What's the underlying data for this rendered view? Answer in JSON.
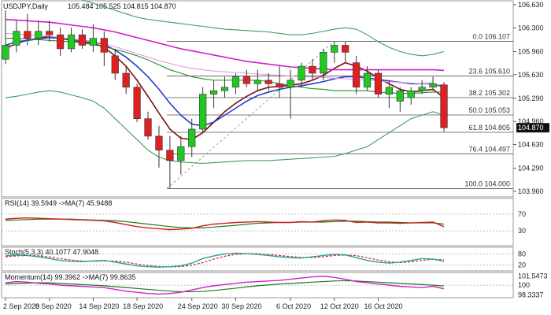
{
  "chart_data": {
    "type": "candlestick",
    "symbol_label": "USDJPY,Daily",
    "ohlc_header": "105.484 105.525 104.815 104.870",
    "last_price_label": "104.870",
    "ylim": [
      103.96,
      106.63
    ],
    "y_ticks": [
      "106.630",
      "106.300",
      "105.960",
      "105.630",
      "105.290",
      "104.960",
      "104.630",
      "104.290",
      "103.960"
    ],
    "x_labels": [
      "2 Sep 2020",
      "8 Sep 2020",
      "14 Sep 2020",
      "18 Sep 2020",
      "24 Sep 2020",
      "30 Sep 2020",
      "6 Oct 2020",
      "12 Oct 2020",
      "16 Oct 2020"
    ],
    "candles": [
      {
        "o": 105.85,
        "h": 106.55,
        "l": 105.78,
        "c": 106.05
      },
      {
        "o": 106.05,
        "h": 106.4,
        "l": 105.95,
        "c": 106.25
      },
      {
        "o": 106.25,
        "h": 106.5,
        "l": 106.05,
        "c": 106.15
      },
      {
        "o": 106.15,
        "h": 106.4,
        "l": 106.05,
        "c": 106.25
      },
      {
        "o": 106.25,
        "h": 106.4,
        "l": 106.1,
        "c": 106.2
      },
      {
        "o": 106.2,
        "h": 106.3,
        "l": 105.9,
        "c": 106.0
      },
      {
        "o": 106.0,
        "h": 106.3,
        "l": 105.95,
        "c": 106.2
      },
      {
        "o": 106.2,
        "h": 106.28,
        "l": 106.0,
        "c": 106.05
      },
      {
        "o": 106.05,
        "h": 106.35,
        "l": 105.95,
        "c": 106.15
      },
      {
        "o": 106.15,
        "h": 106.25,
        "l": 105.75,
        "c": 105.95
      },
      {
        "o": 105.9,
        "h": 106.0,
        "l": 105.55,
        "c": 105.65
      },
      {
        "o": 105.65,
        "h": 105.75,
        "l": 105.35,
        "c": 105.45
      },
      {
        "o": 105.45,
        "h": 105.5,
        "l": 104.95,
        "c": 105.0
      },
      {
        "o": 105.0,
        "h": 105.1,
        "l": 104.7,
        "c": 104.75
      },
      {
        "o": 104.75,
        "h": 104.9,
        "l": 104.3,
        "c": 104.55
      },
      {
        "o": 104.55,
        "h": 104.75,
        "l": 104.0,
        "c": 104.4
      },
      {
        "o": 104.4,
        "h": 104.75,
        "l": 104.2,
        "c": 104.6
      },
      {
        "o": 104.6,
        "h": 105.0,
        "l": 104.45,
        "c": 104.85
      },
      {
        "o": 104.85,
        "h": 105.45,
        "l": 104.8,
        "c": 105.35
      },
      {
        "o": 105.35,
        "h": 105.55,
        "l": 105.15,
        "c": 105.4
      },
      {
        "o": 105.4,
        "h": 105.6,
        "l": 105.3,
        "c": 105.45
      },
      {
        "o": 105.45,
        "h": 105.65,
        "l": 105.35,
        "c": 105.6
      },
      {
        "o": 105.6,
        "h": 105.7,
        "l": 105.45,
        "c": 105.5
      },
      {
        "o": 105.5,
        "h": 105.7,
        "l": 105.4,
        "c": 105.55
      },
      {
        "o": 105.55,
        "h": 105.65,
        "l": 105.4,
        "c": 105.5
      },
      {
        "o": 105.5,
        "h": 105.75,
        "l": 105.3,
        "c": 105.45
      },
      {
        "o": 105.45,
        "h": 105.7,
        "l": 105.0,
        "c": 105.55
      },
      {
        "o": 105.55,
        "h": 105.8,
        "l": 105.45,
        "c": 105.75
      },
      {
        "o": 105.75,
        "h": 105.85,
        "l": 105.55,
        "c": 105.65
      },
      {
        "o": 105.65,
        "h": 106.0,
        "l": 105.55,
        "c": 105.95
      },
      {
        "o": 105.95,
        "h": 106.1,
        "l": 105.8,
        "c": 106.05
      },
      {
        "o": 106.05,
        "h": 106.1,
        "l": 105.8,
        "c": 105.95
      },
      {
        "o": 105.8,
        "h": 105.9,
        "l": 105.35,
        "c": 105.45
      },
      {
        "o": 105.45,
        "h": 105.75,
        "l": 105.4,
        "c": 105.65
      },
      {
        "o": 105.65,
        "h": 105.7,
        "l": 105.3,
        "c": 105.35
      },
      {
        "o": 105.35,
        "h": 105.55,
        "l": 105.15,
        "c": 105.45
      },
      {
        "o": 105.25,
        "h": 105.45,
        "l": 105.1,
        "c": 105.4
      },
      {
        "o": 105.3,
        "h": 105.45,
        "l": 105.2,
        "c": 105.4
      },
      {
        "o": 105.4,
        "h": 105.55,
        "l": 105.35,
        "c": 105.45
      },
      {
        "o": 105.45,
        "h": 105.6,
        "l": 105.4,
        "c": 105.5
      },
      {
        "o": 105.484,
        "h": 105.525,
        "l": 104.815,
        "c": 104.87
      }
    ],
    "moving_averages": [
      {
        "name": "dark-red",
        "color": "#7a1010",
        "values": [
          106.0,
          106.08,
          106.12,
          106.15,
          106.18,
          106.15,
          106.12,
          106.1,
          106.08,
          106.02,
          105.9,
          105.75,
          105.55,
          105.32,
          105.08,
          104.85,
          104.72,
          104.7,
          104.8,
          104.95,
          105.1,
          105.22,
          105.32,
          105.4,
          105.45,
          105.46,
          105.48,
          105.5,
          105.55,
          105.62,
          105.72,
          105.8,
          105.75,
          105.68,
          105.58,
          105.5,
          105.42,
          105.38,
          105.4,
          105.42,
          105.3
        ]
      },
      {
        "name": "blue",
        "color": "#1f3fcc",
        "values": [
          106.05,
          106.1,
          106.12,
          106.14,
          106.16,
          106.15,
          106.14,
          106.12,
          106.1,
          106.06,
          105.98,
          105.88,
          105.75,
          105.6,
          105.42,
          105.22,
          105.05,
          104.92,
          104.9,
          104.95,
          105.05,
          105.15,
          105.25,
          105.33,
          105.38,
          105.42,
          105.45,
          105.47,
          105.5,
          105.53,
          105.57,
          105.6,
          105.6,
          105.58,
          105.56,
          105.54,
          105.52,
          105.5,
          105.5,
          105.5,
          105.45
        ]
      },
      {
        "name": "green",
        "color": "#2a8a2a",
        "values": [
          106.15,
          106.15,
          106.14,
          106.13,
          106.12,
          106.11,
          106.1,
          106.08,
          106.06,
          106.03,
          105.99,
          105.95,
          105.9,
          105.84,
          105.77,
          105.7,
          105.65,
          105.6,
          105.57,
          105.55,
          105.55,
          105.55,
          105.55,
          105.55,
          105.53,
          105.5,
          105.47,
          105.45,
          105.43,
          105.42,
          105.4,
          105.4,
          105.4,
          105.4,
          105.38,
          105.37,
          105.36,
          105.36,
          105.37,
          105.38,
          105.38
        ]
      },
      {
        "name": "magenta",
        "color": "#d020c8",
        "values": [
          106.42,
          106.41,
          106.4,
          106.39,
          106.38,
          106.36,
          106.34,
          106.32,
          106.3,
          106.27,
          106.24,
          106.2,
          106.16,
          106.12,
          106.08,
          106.04,
          106.0,
          105.97,
          105.94,
          105.91,
          105.88,
          105.85,
          105.82,
          105.8,
          105.78,
          105.76,
          105.74,
          105.73,
          105.72,
          105.71,
          105.7,
          105.7,
          105.7,
          105.7,
          105.7,
          105.7,
          105.7,
          105.7,
          105.7,
          105.7,
          105.69
        ]
      },
      {
        "name": "pink",
        "color": "#e89ae0",
        "values": [
          106.22,
          106.21,
          106.2,
          106.19,
          106.18,
          106.16,
          106.14,
          106.12,
          106.1,
          106.07,
          106.03,
          105.98,
          105.93,
          105.88,
          105.83,
          105.79,
          105.75,
          105.72,
          105.7,
          105.68,
          105.67,
          105.66,
          105.65,
          105.64,
          105.63,
          105.62,
          105.61,
          105.6,
          105.6,
          105.59,
          105.58,
          105.57,
          105.56,
          105.55,
          105.54,
          105.53,
          105.52,
          105.51,
          105.5,
          105.49,
          105.48
        ]
      },
      {
        "name": "bollinger-upper",
        "color": "#3aa05a",
        "values": [
          106.7,
          106.72,
          106.75,
          106.78,
          106.8,
          106.78,
          106.75,
          106.7,
          106.65,
          106.6,
          106.55,
          106.5,
          106.45,
          106.42,
          106.4,
          106.38,
          106.36,
          106.34,
          106.32,
          106.3,
          106.28,
          106.27,
          106.26,
          106.25,
          106.24,
          106.22,
          106.2,
          106.2,
          106.22,
          106.25,
          106.28,
          106.3,
          106.28,
          106.2,
          106.1,
          106.02,
          105.96,
          105.92,
          105.9,
          105.92,
          105.96
        ]
      },
      {
        "name": "bollinger-lower",
        "color": "#3aa05a",
        "values": [
          105.3,
          105.32,
          105.35,
          105.38,
          105.4,
          105.38,
          105.34,
          105.3,
          105.25,
          105.15,
          105.0,
          104.85,
          104.7,
          104.55,
          104.45,
          104.4,
          104.38,
          104.37,
          104.36,
          104.37,
          104.38,
          104.39,
          104.4,
          104.4,
          104.4,
          104.41,
          104.42,
          104.43,
          104.44,
          104.45,
          104.46,
          104.5,
          104.55,
          104.6,
          104.7,
          104.8,
          104.9,
          105.0,
          105.05,
          105.1,
          105.05
        ]
      }
    ],
    "fibonacci": [
      {
        "label": "0.0 106.107",
        "value": 106.107
      },
      {
        "label": "23.6 105.610",
        "value": 105.61
      },
      {
        "label": "38.2 105.302",
        "value": 105.302
      },
      {
        "label": "50.0 105.053",
        "value": 105.053
      },
      {
        "label": "61.8 104.805",
        "value": 104.805
      },
      {
        "label": "76.4 104.497",
        "value": 104.497
      },
      {
        "label": "100.0 104.000",
        "value": 104.0
      }
    ],
    "panels": [
      {
        "name": "rsi",
        "header": "RSI(14) 39.5949  ->MA(7) 45.9488",
        "levels": [
          "70",
          "30"
        ],
        "ylim": [
          0,
          100
        ],
        "line_color": "#d02020",
        "ma_color": "#1a7a1a",
        "values": [
          58,
          60,
          61,
          60,
          59,
          58,
          57,
          56,
          55,
          54,
          50,
          45,
          40,
          37,
          35,
          33,
          34,
          36,
          42,
          46,
          48,
          50,
          51,
          52,
          51,
          50,
          50,
          52,
          51,
          54,
          56,
          55,
          50,
          51,
          49,
          49,
          48,
          49,
          50,
          51,
          40
        ],
        "ma_values": [
          55,
          56,
          57,
          58,
          58,
          58,
          58,
          57,
          56,
          55,
          54,
          52,
          49,
          46,
          43,
          40,
          38,
          37,
          37,
          39,
          41,
          43,
          46,
          48,
          49,
          50,
          50,
          51,
          51,
          51,
          52,
          53,
          53,
          52,
          51,
          51,
          50,
          49,
          49,
          49,
          46
        ]
      },
      {
        "name": "stochastic",
        "header": "Stoch(5,3,3) 40.1077  47.9048",
        "levels": [
          "80",
          "20"
        ],
        "ylim": [
          0,
          100
        ],
        "line_color": "#2aa0a0",
        "ma_color": "#d02020",
        "values": [
          70,
          75,
          72,
          65,
          55,
          45,
          40,
          38,
          42,
          45,
          35,
          25,
          15,
          10,
          8,
          10,
          15,
          30,
          55,
          70,
          80,
          85,
          82,
          78,
          72,
          65,
          60,
          58,
          65,
          72,
          78,
          75,
          60,
          45,
          35,
          30,
          35,
          45,
          55,
          52,
          40
        ],
        "ma_values": [
          65,
          70,
          72,
          70,
          64,
          55,
          47,
          41,
          40,
          42,
          41,
          35,
          25,
          17,
          11,
          9,
          11,
          18,
          33,
          52,
          68,
          78,
          82,
          82,
          77,
          72,
          66,
          61,
          61,
          65,
          72,
          75,
          71,
          60,
          47,
          37,
          33,
          37,
          45,
          51,
          48
        ]
      },
      {
        "name": "momentum",
        "header": "Momentum(14) 99.3962  ->MA(7) 99.8635",
        "levels": [
          "100"
        ],
        "tick_labels": [
          "101.5473",
          "98.3337"
        ],
        "ylim": [
          98.3,
          101.6
        ],
        "line_color": "#d020c8",
        "ma_color": "#1a7a1a",
        "values": [
          100.4,
          100.6,
          100.5,
          100.3,
          100.2,
          100.0,
          99.9,
          99.8,
          99.7,
          99.6,
          99.3,
          99.0,
          98.8,
          98.6,
          98.5,
          98.6,
          98.8,
          99.2,
          99.6,
          99.9,
          100.1,
          100.3,
          100.5,
          100.6,
          100.7,
          100.8,
          101.0,
          101.2,
          101.4,
          101.5,
          101.3,
          101.0,
          100.6,
          100.4,
          100.2,
          100.0,
          99.8,
          99.7,
          99.6,
          99.8,
          99.4
        ],
        "ma_values": [
          100.2,
          100.3,
          100.35,
          100.4,
          100.4,
          100.3,
          100.2,
          100.1,
          100.0,
          99.9,
          99.75,
          99.6,
          99.45,
          99.3,
          99.15,
          99.0,
          98.9,
          98.9,
          98.95,
          99.1,
          99.3,
          99.5,
          99.7,
          99.9,
          100.05,
          100.2,
          100.3,
          100.4,
          100.5,
          100.6,
          100.7,
          100.75,
          100.7,
          100.6,
          100.5,
          100.4,
          100.3,
          100.2,
          100.1,
          100.0,
          99.86
        ]
      }
    ],
    "colors": {
      "bull": "#22c822",
      "bear": "#e02020",
      "wick": "#333333",
      "grid": "#888888",
      "fib_line": "#555555",
      "last_price_bg": "#111111"
    }
  }
}
